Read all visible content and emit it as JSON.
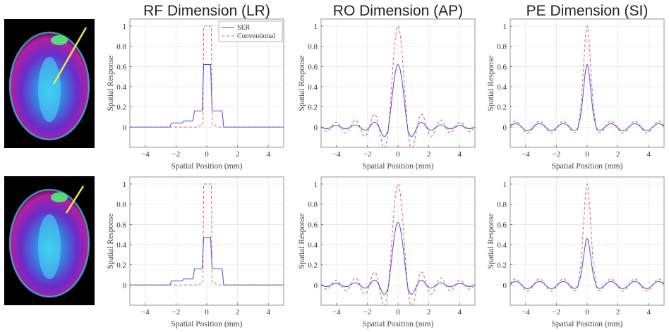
{
  "colors": {
    "ser": "#4a4adf",
    "conventional": "#f05a5a",
    "arrow": "#f2e64a"
  },
  "icons": {
    "brain_top": "axial-brain-mri-slice-with-yellow-arrow",
    "brain_bottom": "axial-brain-mri-slice-with-yellow-arrow"
  },
  "chart_data": [
    {
      "id": "RF-top",
      "type": "line",
      "title": "RF Dimension (LR)",
      "kind": "rf",
      "peak": 0.62,
      "xlabel": "Spatial Position (mm)",
      "ylabel": "Spatial Response",
      "xlim": [
        -5,
        5
      ],
      "ylim": [
        -0.2,
        1.07
      ],
      "xticks": [
        -4,
        -2,
        0,
        2,
        4
      ],
      "yticks": [
        0,
        0.2,
        0.4,
        0.6,
        0.8,
        1
      ],
      "grid": true,
      "legend": [
        "SER",
        "Conventional"
      ],
      "legend_position": "top-right",
      "series": [
        {
          "name": "SER",
          "x": [
            -5,
            -2.4,
            -2.3,
            -1.6,
            -1.5,
            -0.9,
            -0.8,
            -0.3,
            -0.2,
            0.25,
            0.35,
            1.0,
            1.1,
            5
          ],
          "values": [
            0,
            0,
            0.04,
            0.04,
            0.06,
            0.06,
            0.16,
            0.16,
            0.62,
            0.62,
            0.16,
            0.16,
            0,
            0
          ]
        },
        {
          "name": "Conventional",
          "x": [
            -5,
            -0.55,
            -0.35,
            -0.25,
            -0.2,
            0.3,
            0.35,
            0.5,
            0.7,
            5
          ],
          "values": [
            0,
            0,
            0.02,
            0.02,
            1.0,
            1.0,
            0.02,
            0.02,
            0,
            0
          ]
        }
      ]
    },
    {
      "id": "RO-top",
      "type": "line",
      "title": "RO Dimension (AP)",
      "kind": "sinc",
      "peak": 0.62,
      "xlabel": "Spatial Position (mm)",
      "ylabel": "Spatial Response",
      "xlim": [
        -5,
        5
      ],
      "ylim": [
        -0.2,
        1.07
      ],
      "xticks": [
        -4,
        -2,
        0,
        2,
        4
      ],
      "yticks": [
        0,
        0.2,
        0.4,
        0.6,
        0.8,
        1
      ],
      "grid": true,
      "legend": [
        "SER",
        "Conventional"
      ],
      "series": [
        {
          "name": "SER",
          "peak": 0.62,
          "main_lobe_mm": 0.55
        },
        {
          "name": "Conventional",
          "peak": 1.0,
          "main_lobe_mm": 0.55
        }
      ]
    },
    {
      "id": "PE-top",
      "type": "line",
      "title": "PE Dimension (SI)",
      "kind": "gauss",
      "peak": 0.62,
      "xlabel": "Spatial Position (mm)",
      "ylabel": "Spatial Response",
      "xlim": [
        -5,
        5
      ],
      "ylim": [
        -0.2,
        1.07
      ],
      "xticks": [
        -4,
        -2,
        0,
        2,
        4
      ],
      "yticks": [
        0,
        0.2,
        0.4,
        0.6,
        0.8,
        1
      ],
      "grid": true,
      "legend": [
        "SER",
        "Conventional"
      ],
      "series": [
        {
          "name": "SER",
          "peak": 0.62
        },
        {
          "name": "Conventional",
          "peak": 1.0
        }
      ]
    },
    {
      "id": "RF-bottom",
      "type": "line",
      "title": "",
      "kind": "rf",
      "peak": 0.47,
      "xlabel": "Spatial Position (mm)",
      "ylabel": "Spatial Response",
      "xlim": [
        -5,
        5
      ],
      "ylim": [
        -0.2,
        1.07
      ],
      "xticks": [
        -4,
        -2,
        0,
        2,
        4
      ],
      "yticks": [
        0,
        0.2,
        0.4,
        0.6,
        0.8,
        1
      ],
      "grid": true,
      "legend": [
        "SER",
        "Conventional"
      ],
      "series": [
        {
          "name": "SER",
          "x": [
            -5,
            -2.4,
            -2.3,
            -1.6,
            -1.5,
            -0.9,
            -0.8,
            -0.3,
            -0.2,
            0.25,
            0.35,
            1.0,
            1.1,
            5
          ],
          "values": [
            0,
            0,
            0.04,
            0.04,
            0.06,
            0.06,
            0.16,
            0.16,
            0.47,
            0.47,
            0.16,
            0.16,
            0,
            0
          ]
        },
        {
          "name": "Conventional",
          "x": [
            -5,
            -0.55,
            -0.35,
            -0.25,
            -0.2,
            0.3,
            0.35,
            0.5,
            0.7,
            5
          ],
          "values": [
            0,
            0,
            0.02,
            0.02,
            1.0,
            1.0,
            0.02,
            0.02,
            0,
            0
          ]
        }
      ]
    },
    {
      "id": "RO-bottom",
      "type": "line",
      "title": "",
      "kind": "sinc",
      "peak": 0.62,
      "xlabel": "Spatial Position (mm)",
      "ylabel": "Spatial Response",
      "xlim": [
        -5,
        5
      ],
      "ylim": [
        -0.2,
        1.07
      ],
      "xticks": [
        -4,
        -2,
        0,
        2,
        4
      ],
      "yticks": [
        0,
        0.2,
        0.4,
        0.6,
        0.8,
        1
      ],
      "grid": true,
      "legend": [
        "SER",
        "Conventional"
      ],
      "series": [
        {
          "name": "SER",
          "peak": 0.62,
          "main_lobe_mm": 0.55
        },
        {
          "name": "Conventional",
          "peak": 1.0,
          "main_lobe_mm": 0.55
        }
      ]
    },
    {
      "id": "PE-bottom",
      "type": "line",
      "title": "",
      "kind": "gauss",
      "peak": 0.46,
      "xlabel": "Spatial Position (mm)",
      "ylabel": "Spatial Response",
      "xlim": [
        -5,
        5
      ],
      "ylim": [
        -0.2,
        1.07
      ],
      "xticks": [
        -4,
        -2,
        0,
        2,
        4
      ],
      "yticks": [
        0,
        0.2,
        0.4,
        0.6,
        0.8,
        1
      ],
      "grid": true,
      "legend": [
        "SER",
        "Conventional"
      ],
      "series": [
        {
          "name": "SER",
          "peak": 0.46
        },
        {
          "name": "Conventional",
          "peak": 1.0
        }
      ]
    }
  ]
}
